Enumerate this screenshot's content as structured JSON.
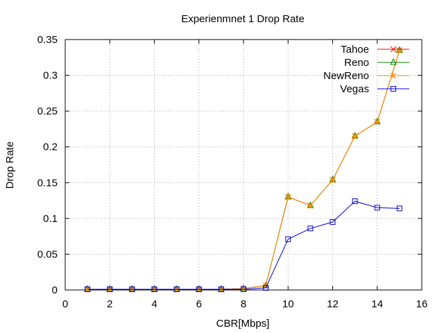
{
  "chart_data": {
    "type": "line",
    "title": "Experienmnet 1 Drop Rate",
    "xlabel": "CBR[Mbps]",
    "ylabel": "Drop Rate",
    "xlim": [
      0,
      16
    ],
    "ylim": [
      0,
      0.35
    ],
    "xticks": [
      0,
      2,
      4,
      6,
      8,
      10,
      12,
      14,
      16
    ],
    "xtick_labels": [
      "0",
      "2",
      "4",
      "6",
      "8",
      "10",
      "12",
      "14",
      "16"
    ],
    "yticks": [
      0,
      0.05,
      0.1,
      0.15,
      0.2,
      0.25,
      0.3,
      0.35
    ],
    "ytick_labels": [
      "0",
      "0.05",
      "0.1",
      "0.15",
      "0.2",
      "0.25",
      "0.3",
      "0.35"
    ],
    "grid": true,
    "legend_position": "top-right",
    "x": [
      1,
      2,
      3,
      4,
      5,
      6,
      7,
      8,
      9,
      10,
      11,
      12,
      13,
      14,
      15
    ],
    "series": [
      {
        "name": "Tahoe",
        "color": "#ff0000",
        "marker": "cross",
        "values": [
          0.001,
          0.001,
          0.001,
          0.001,
          0.001,
          0.001,
          0.001,
          0.002,
          0.006,
          0.13,
          0.118,
          0.154,
          0.215,
          0.235,
          0.335
        ]
      },
      {
        "name": "Reno",
        "color": "#008000",
        "marker": "triangle",
        "values": [
          0.001,
          0.001,
          0.001,
          0.001,
          0.001,
          0.001,
          0.001,
          0.002,
          0.006,
          0.13,
          0.118,
          0.154,
          0.215,
          0.235,
          0.335
        ]
      },
      {
        "name": "NewReno",
        "color": "#ff8c00",
        "marker": "star",
        "values": [
          0.001,
          0.001,
          0.001,
          0.001,
          0.001,
          0.001,
          0.001,
          0.002,
          0.006,
          0.13,
          0.118,
          0.154,
          0.215,
          0.235,
          0.335
        ]
      },
      {
        "name": "Vegas",
        "color": "#0000cd",
        "marker": "square",
        "values": [
          0.001,
          0.001,
          0.001,
          0.001,
          0.001,
          0.001,
          0.001,
          0.001,
          0.003,
          0.071,
          0.086,
          0.095,
          0.124,
          0.115,
          0.114
        ]
      }
    ]
  }
}
